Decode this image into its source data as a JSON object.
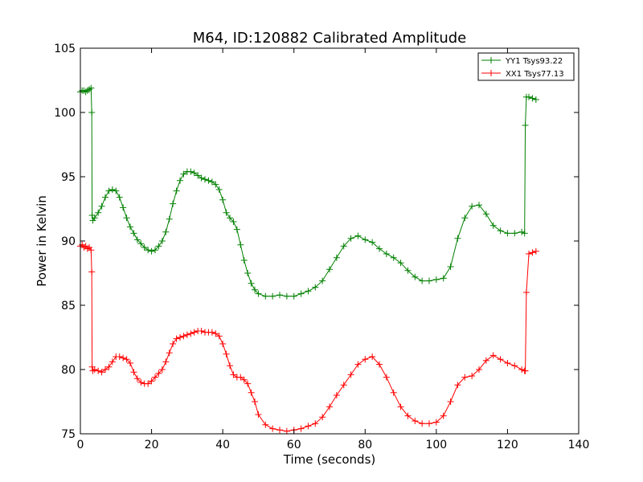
{
  "chart_data": {
    "type": "line",
    "title": "M64, ID:120882 Calibrated Amplitude",
    "xlabel": "Time (seconds)",
    "ylabel": "Power in Kelvin",
    "xlim": [
      0,
      140
    ],
    "ylim": [
      75,
      105
    ],
    "xticks": [
      "0",
      "20",
      "40",
      "60",
      "80",
      "100",
      "120",
      "140"
    ],
    "yticks": [
      "75",
      "80",
      "85",
      "90",
      "95",
      "100",
      "105"
    ],
    "grid": false,
    "legend_position": "top-right",
    "marker": "+",
    "series": [
      {
        "name": "YY1 Tsys93.22",
        "color": "#008000",
        "x": [
          0,
          0.5,
          1,
          1.5,
          2,
          2.5,
          3,
          3.2,
          3.3,
          3.5,
          4,
          5,
          6,
          7,
          8,
          9,
          10,
          11,
          12,
          13,
          14,
          15,
          16,
          17,
          18,
          19,
          20,
          21,
          22,
          23,
          24,
          25,
          26,
          27,
          28,
          29,
          30,
          31,
          32,
          33,
          34,
          35,
          36,
          37,
          38,
          39,
          40,
          41,
          42,
          43,
          44,
          45,
          46,
          47,
          48,
          49,
          50,
          52,
          54,
          56,
          58,
          60,
          62,
          64,
          66,
          68,
          70,
          72,
          74,
          76,
          78,
          80,
          82,
          84,
          86,
          88,
          90,
          92,
          94,
          96,
          98,
          100,
          102,
          104,
          106,
          108,
          110,
          112,
          114,
          116,
          118,
          120,
          122,
          124,
          124.8,
          125,
          125.3,
          126,
          127,
          128
        ],
        "values": [
          101.6,
          101.7,
          101.7,
          101.6,
          101.7,
          101.8,
          101.9,
          100.0,
          92.0,
          91.6,
          91.8,
          92.2,
          92.7,
          93.4,
          93.9,
          94.0,
          93.9,
          93.4,
          92.6,
          91.8,
          91.1,
          90.6,
          90.1,
          89.8,
          89.5,
          89.3,
          89.2,
          89.3,
          89.6,
          90.0,
          90.7,
          91.7,
          92.9,
          93.9,
          94.7,
          95.2,
          95.4,
          95.4,
          95.3,
          95.1,
          94.9,
          94.8,
          94.7,
          94.6,
          94.4,
          94.0,
          93.2,
          92.2,
          91.8,
          91.5,
          90.9,
          89.7,
          88.5,
          87.5,
          86.7,
          86.2,
          85.9,
          85.7,
          85.7,
          85.8,
          85.7,
          85.7,
          85.9,
          86.1,
          86.4,
          86.9,
          87.8,
          88.7,
          89.6,
          90.2,
          90.4,
          90.1,
          89.9,
          89.4,
          89.0,
          88.7,
          88.3,
          87.7,
          87.2,
          86.9,
          86.9,
          87.0,
          87.1,
          88.0,
          90.2,
          91.8,
          92.7,
          92.8,
          92.1,
          91.2,
          90.8,
          90.6,
          90.6,
          90.7,
          90.6,
          99.0,
          101.2,
          101.2,
          101.1,
          101.0
        ]
      },
      {
        "name": "XX1 Tsys77.13",
        "color": "#ff0000",
        "x": [
          0,
          0.5,
          1,
          1.5,
          2,
          2.5,
          3,
          3.2,
          3.3,
          3.5,
          4,
          5,
          6,
          7,
          8,
          9,
          10,
          11,
          12,
          13,
          14,
          15,
          16,
          17,
          18,
          19,
          20,
          21,
          22,
          23,
          24,
          25,
          26,
          27,
          28,
          29,
          30,
          31,
          32,
          33,
          34,
          35,
          36,
          37,
          38,
          39,
          40,
          41,
          42,
          43,
          44,
          45,
          46,
          47,
          48,
          49,
          50,
          52,
          54,
          56,
          58,
          60,
          62,
          64,
          66,
          68,
          70,
          72,
          74,
          76,
          78,
          80,
          82,
          84,
          86,
          88,
          90,
          92,
          94,
          96,
          98,
          100,
          102,
          104,
          106,
          108,
          110,
          112,
          114,
          116,
          118,
          120,
          122,
          124,
          124.8,
          125,
          125.3,
          126,
          127,
          128
        ],
        "values": [
          89.6,
          89.7,
          89.5,
          89.6,
          89.4,
          89.5,
          89.3,
          87.6,
          80.2,
          79.9,
          80.0,
          79.9,
          79.8,
          80.0,
          80.2,
          80.6,
          81.0,
          81.0,
          80.9,
          80.8,
          80.5,
          79.8,
          79.3,
          79.0,
          78.9,
          78.9,
          79.1,
          79.4,
          79.7,
          80.0,
          80.6,
          81.3,
          82.0,
          82.4,
          82.5,
          82.6,
          82.7,
          82.8,
          82.9,
          83.0,
          83.0,
          82.9,
          82.9,
          82.9,
          82.8,
          82.6,
          82.0,
          81.2,
          80.3,
          79.6,
          79.4,
          79.4,
          79.2,
          78.9,
          78.2,
          77.5,
          76.5,
          75.7,
          75.4,
          75.3,
          75.2,
          75.3,
          75.4,
          75.6,
          75.8,
          76.3,
          77.1,
          78.0,
          78.8,
          79.6,
          80.4,
          80.8,
          81.0,
          80.4,
          79.4,
          78.2,
          77.1,
          76.4,
          76.0,
          75.8,
          75.8,
          75.9,
          76.4,
          77.5,
          78.8,
          79.4,
          79.5,
          80.0,
          80.7,
          81.1,
          80.8,
          80.5,
          80.3,
          80.0,
          79.9,
          79.9,
          86.0,
          89.0,
          89.1,
          89.2
        ]
      }
    ]
  }
}
